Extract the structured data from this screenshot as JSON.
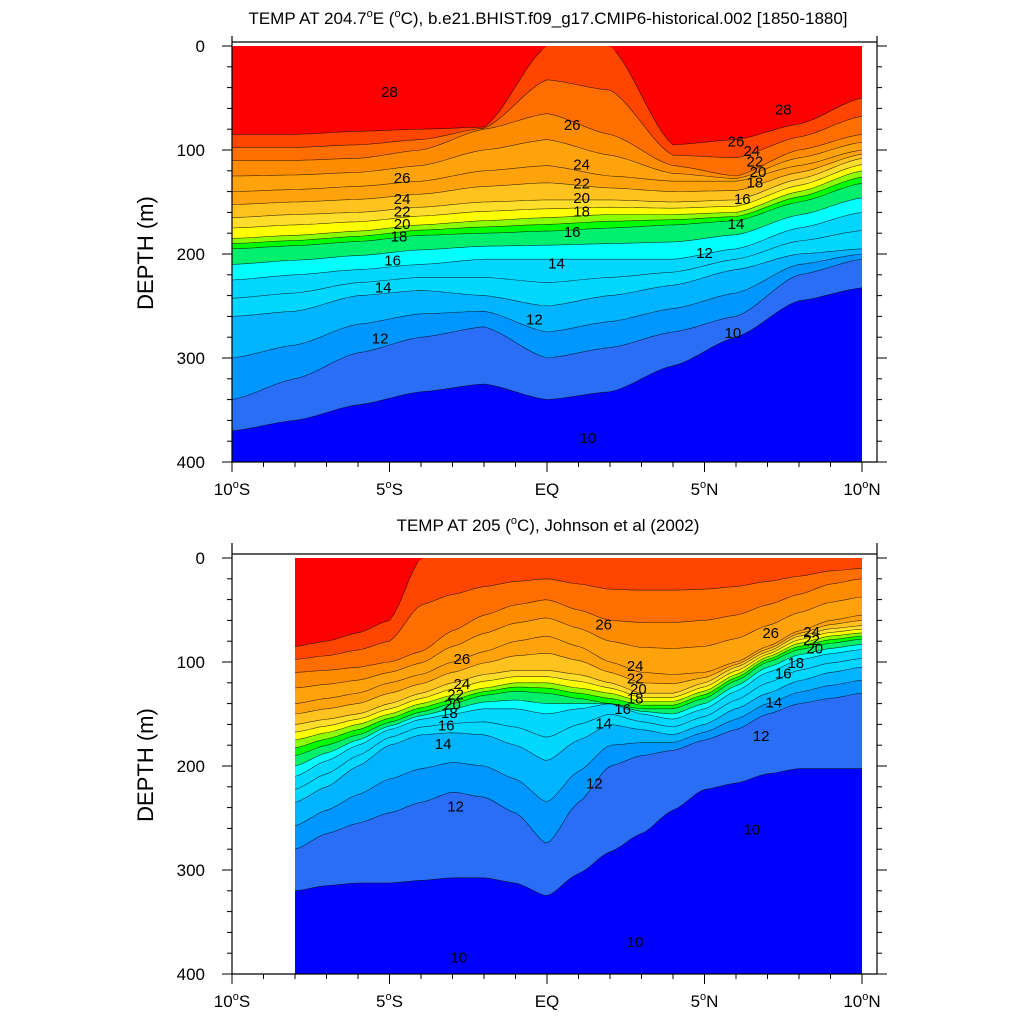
{
  "chart_data": [
    {
      "type": "contour",
      "title": "TEMP AT 204.7ºE (ºC), b.e21.BHIST.f09_g17.CMIP6-historical.002 [1850-1880]",
      "title_parts": {
        "pre": "TEMP AT 204.7",
        "deg1": "o",
        "mid": "E (",
        "deg2": "o",
        "post": "C), b.e21.BHIST.f09_g17.CMIP6-historical.002 [1850-1880]"
      },
      "ylabel": "DEPTH (m)",
      "xlim": [
        -10,
        10
      ],
      "ylim": [
        0,
        400
      ],
      "data_xrange": [
        -10,
        10
      ],
      "x_ticks": [
        {
          "value": -10,
          "num": "10",
          "hemi": "S"
        },
        {
          "value": -5,
          "num": "5",
          "hemi": "S"
        },
        {
          "value": 0,
          "num": "EQ",
          "hemi": ""
        },
        {
          "value": 5,
          "num": "5",
          "hemi": "N"
        },
        {
          "value": 10,
          "num": "10",
          "hemi": "N"
        }
      ],
      "y_ticks": [
        0,
        100,
        200,
        300,
        400
      ],
      "levels": [
        10,
        11,
        12,
        13,
        14,
        15,
        16,
        17,
        18,
        19,
        20,
        21,
        22,
        23,
        24,
        25,
        26,
        27,
        28
      ],
      "colors": [
        "#0000ff",
        "#2a6ef5",
        "#0096ff",
        "#00b4ff",
        "#00d7ff",
        "#00ffff",
        "#00f06e",
        "#00ff00",
        "#8cff00",
        "#ffff00",
        "#ffdd2b",
        "#ffc21f",
        "#ffa30d",
        "#ff8c00",
        "#ff6e00",
        "#ff4500",
        "#ff0000"
      ],
      "isotherm_depths": {
        "x": [
          -10,
          -8,
          -6,
          -4,
          -2,
          0,
          2,
          4,
          6,
          8,
          10
        ],
        "28": [
          85,
          85,
          82,
          80,
          78,
          0,
          0,
          95,
          90,
          75,
          50
        ],
        "26": [
          110,
          110,
          108,
          100,
          80,
          65,
          85,
          115,
          125,
          100,
          85
        ],
        "24": [
          140,
          138,
          135,
          130,
          120,
          115,
          125,
          130,
          130,
          115,
          100
        ],
        "22": [
          165,
          162,
          160,
          155,
          150,
          148,
          148,
          150,
          148,
          128,
          108
        ],
        "20": [
          185,
          182,
          178,
          172,
          168,
          165,
          162,
          162,
          160,
          140,
          120
        ],
        "18": [
          195,
          192,
          188,
          182,
          180,
          178,
          175,
          172,
          168,
          150,
          132
        ],
        "16": [
          225,
          220,
          215,
          210,
          205,
          205,
          205,
          205,
          195,
          175,
          160
        ],
        "14": [
          260,
          255,
          240,
          235,
          240,
          250,
          240,
          230,
          215,
          200,
          195
        ],
        "12": [
          340,
          320,
          295,
          280,
          270,
          300,
          290,
          275,
          260,
          220,
          205
        ],
        "10": [
          400,
          400,
          395,
          385,
          380,
          380,
          375,
          340,
          300,
          270,
          260
        ]
      },
      "labels": [
        {
          "text": "28",
          "x": -5.0,
          "depth": 45
        },
        {
          "text": "28",
          "x": 7.5,
          "depth": 62
        },
        {
          "text": "26",
          "x": 0.8,
          "depth": 77
        },
        {
          "text": "26",
          "x": 6.0,
          "depth": 93
        },
        {
          "text": "26",
          "x": -4.6,
          "depth": 128
        },
        {
          "text": "24",
          "x": 1.1,
          "depth": 115
        },
        {
          "text": "24",
          "x": 6.5,
          "depth": 102
        },
        {
          "text": "24",
          "x": -4.6,
          "depth": 148
        },
        {
          "text": "22",
          "x": 1.1,
          "depth": 133
        },
        {
          "text": "22",
          "x": 6.6,
          "depth": 112
        },
        {
          "text": "22",
          "x": -4.6,
          "depth": 160
        },
        {
          "text": "20",
          "x": 1.1,
          "depth": 147
        },
        {
          "text": "20",
          "x": 6.7,
          "depth": 122
        },
        {
          "text": "20",
          "x": -4.6,
          "depth": 172
        },
        {
          "text": "18",
          "x": 1.1,
          "depth": 160
        },
        {
          "text": "18",
          "x": 6.6,
          "depth": 132
        },
        {
          "text": "18",
          "x": -4.7,
          "depth": 184
        },
        {
          "text": "16",
          "x": 0.8,
          "depth": 180
        },
        {
          "text": "16",
          "x": 6.2,
          "depth": 148
        },
        {
          "text": "16",
          "x": -4.9,
          "depth": 207
        },
        {
          "text": "14",
          "x": 0.3,
          "depth": 210
        },
        {
          "text": "14",
          "x": 6.0,
          "depth": 172
        },
        {
          "text": "14",
          "x": -5.2,
          "depth": 233
        },
        {
          "text": "12",
          "x": -0.4,
          "depth": 264
        },
        {
          "text": "12",
          "x": 5.0,
          "depth": 200
        },
        {
          "text": "12",
          "x": -5.3,
          "depth": 282
        },
        {
          "text": "10",
          "x": 1.3,
          "depth": 378
        },
        {
          "text": "10",
          "x": 5.9,
          "depth": 277
        }
      ]
    },
    {
      "type": "contour",
      "title": "TEMP AT 205 (ºC), Johnson et al (2002)",
      "title_parts": {
        "pre": "TEMP AT 205 (",
        "deg1": "o",
        "mid": "C), Johnson et al (2002)",
        "deg2": "",
        "post": ""
      },
      "ylabel": "DEPTH (m)",
      "xlim": [
        -10,
        10
      ],
      "ylim": [
        0,
        400
      ],
      "data_xrange": [
        -8,
        10
      ],
      "x_ticks": [
        {
          "value": -10,
          "num": "10",
          "hemi": "S"
        },
        {
          "value": -5,
          "num": "5",
          "hemi": "S"
        },
        {
          "value": 0,
          "num": "EQ",
          "hemi": ""
        },
        {
          "value": 5,
          "num": "5",
          "hemi": "N"
        },
        {
          "value": 10,
          "num": "10",
          "hemi": "N"
        }
      ],
      "y_ticks": [
        0,
        100,
        200,
        300,
        400
      ],
      "levels": [
        10,
        11,
        12,
        13,
        14,
        15,
        16,
        17,
        18,
        19,
        20,
        21,
        22,
        23,
        24,
        25,
        26,
        27,
        28
      ],
      "colors": [
        "#0000ff",
        "#2a6ef5",
        "#0096ff",
        "#00b4ff",
        "#00d7ff",
        "#00ffff",
        "#00f06e",
        "#00ff00",
        "#8cff00",
        "#ffff00",
        "#ffdd2b",
        "#ffc21f",
        "#ffa30d",
        "#ff8c00",
        "#ff6e00",
        "#ff4500",
        "#ff0000"
      ],
      "isotherm_depths": {
        "x": [
          -8,
          -7,
          -6,
          -5,
          -4,
          -3,
          -2,
          -1,
          0,
          1,
          2,
          3,
          4,
          5,
          6,
          7,
          8,
          9,
          10
        ],
        "28": [
          85,
          80,
          72,
          60,
          0,
          0,
          0,
          0,
          0,
          0,
          0,
          0,
          0,
          0,
          0,
          0,
          0,
          0,
          0
        ],
        "26": [
          110,
          108,
          105,
          100,
          90,
          70,
          55,
          45,
          40,
          50,
          60,
          62,
          62,
          60,
          55,
          45,
          35,
          25,
          20
        ],
        "24": [
          140,
          135,
          130,
          120,
          112,
          100,
          90,
          80,
          75,
          85,
          100,
          110,
          112,
          110,
          100,
          85,
          70,
          60,
          55
        ],
        "22": [
          160,
          155,
          150,
          140,
          130,
          120,
          112,
          108,
          108,
          112,
          120,
          130,
          130,
          120,
          105,
          90,
          75,
          68,
          65
        ],
        "20": [
          175,
          168,
          160,
          150,
          140,
          132,
          125,
          120,
          120,
          125,
          130,
          138,
          138,
          128,
          112,
          95,
          82,
          75,
          72
        ],
        "18": [
          190,
          180,
          170,
          158,
          148,
          140,
          132,
          128,
          130,
          135,
          140,
          145,
          145,
          135,
          118,
          100,
          88,
          82,
          78
        ],
        "16": [
          210,
          195,
          180,
          165,
          155,
          150,
          145,
          145,
          150,
          145,
          140,
          150,
          155,
          145,
          128,
          110,
          98,
          92,
          88
        ],
        "14": [
          235,
          220,
          200,
          180,
          170,
          168,
          170,
          180,
          195,
          175,
          160,
          165,
          170,
          160,
          145,
          130,
          118,
          110,
          105
        ],
        "12": [
          280,
          265,
          255,
          245,
          235,
          225,
          230,
          245,
          275,
          235,
          200,
          190,
          185,
          175,
          165,
          150,
          140,
          135,
          130
        ],
        "10": [
          360,
          365,
          370,
          380,
          385,
          390,
          385,
          380,
          375,
          372,
          365,
          340,
          300,
          270,
          268,
          265,
          265,
          270,
          275
        ]
      },
      "labels": [
        {
          "text": "26",
          "x": -2.7,
          "depth": 98
        },
        {
          "text": "26",
          "x": 1.8,
          "depth": 65
        },
        {
          "text": "26",
          "x": 7.1,
          "depth": 73
        },
        {
          "text": "24",
          "x": -2.7,
          "depth": 122
        },
        {
          "text": "24",
          "x": 2.8,
          "depth": 105
        },
        {
          "text": "24",
          "x": 8.4,
          "depth": 72
        },
        {
          "text": "22",
          "x": -2.9,
          "depth": 132
        },
        {
          "text": "22",
          "x": 2.8,
          "depth": 117
        },
        {
          "text": "22",
          "x": 8.4,
          "depth": 80
        },
        {
          "text": "20",
          "x": -3.0,
          "depth": 142
        },
        {
          "text": "20",
          "x": 2.9,
          "depth": 127
        },
        {
          "text": "20",
          "x": 8.5,
          "depth": 88
        },
        {
          "text": "18",
          "x": -3.1,
          "depth": 150
        },
        {
          "text": "18",
          "x": 2.8,
          "depth": 136
        },
        {
          "text": "18",
          "x": 7.9,
          "depth": 102
        },
        {
          "text": "16",
          "x": -3.2,
          "depth": 162
        },
        {
          "text": "16",
          "x": 2.4,
          "depth": 146
        },
        {
          "text": "16",
          "x": 7.5,
          "depth": 112
        },
        {
          "text": "14",
          "x": -3.3,
          "depth": 180
        },
        {
          "text": "14",
          "x": 1.8,
          "depth": 160
        },
        {
          "text": "14",
          "x": 7.2,
          "depth": 140
        },
        {
          "text": "12",
          "x": -2.9,
          "depth": 240
        },
        {
          "text": "12",
          "x": 1.5,
          "depth": 218
        },
        {
          "text": "12",
          "x": 6.8,
          "depth": 172
        },
        {
          "text": "10",
          "x": -2.8,
          "depth": 385
        },
        {
          "text": "10",
          "x": 2.8,
          "depth": 370
        },
        {
          "text": "10",
          "x": 6.5,
          "depth": 262
        }
      ]
    }
  ]
}
